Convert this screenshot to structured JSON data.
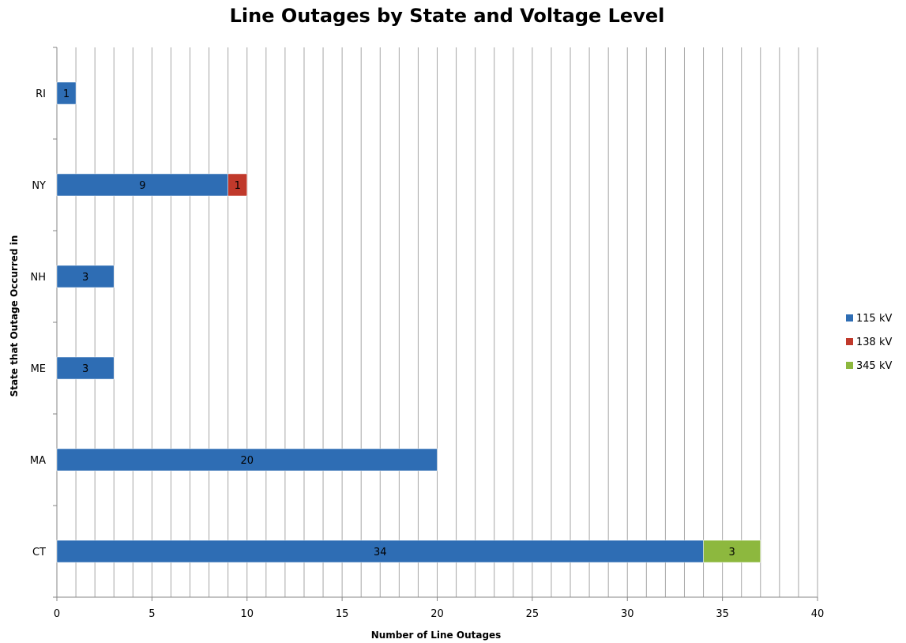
{
  "chart_data": {
    "type": "bar",
    "orientation": "horizontal",
    "stacked": true,
    "title": "Line Outages by State and Voltage Level",
    "xlabel": "Number of Line Outages",
    "ylabel": "State that Outage Occurred in",
    "xlim": [
      0,
      40
    ],
    "x_tick_labels": [
      "0",
      "5",
      "10",
      "15",
      "20",
      "25",
      "30",
      "35",
      "40"
    ],
    "minor_gridline_step": 1,
    "grid": true,
    "legend_position": "right",
    "categories": [
      "RI",
      "NY",
      "NH",
      "ME",
      "MA",
      "CT"
    ],
    "series": [
      {
        "name": "115 kV",
        "color": "#2e6db4",
        "values": [
          1,
          9,
          3,
          3,
          20,
          34
        ]
      },
      {
        "name": "138 kV",
        "color": "#c0392b",
        "values": [
          0,
          1,
          0,
          0,
          0,
          0
        ]
      },
      {
        "name": "345 kV",
        "color": "#8db83e",
        "values": [
          0,
          0,
          0,
          0,
          0,
          3
        ]
      }
    ]
  }
}
